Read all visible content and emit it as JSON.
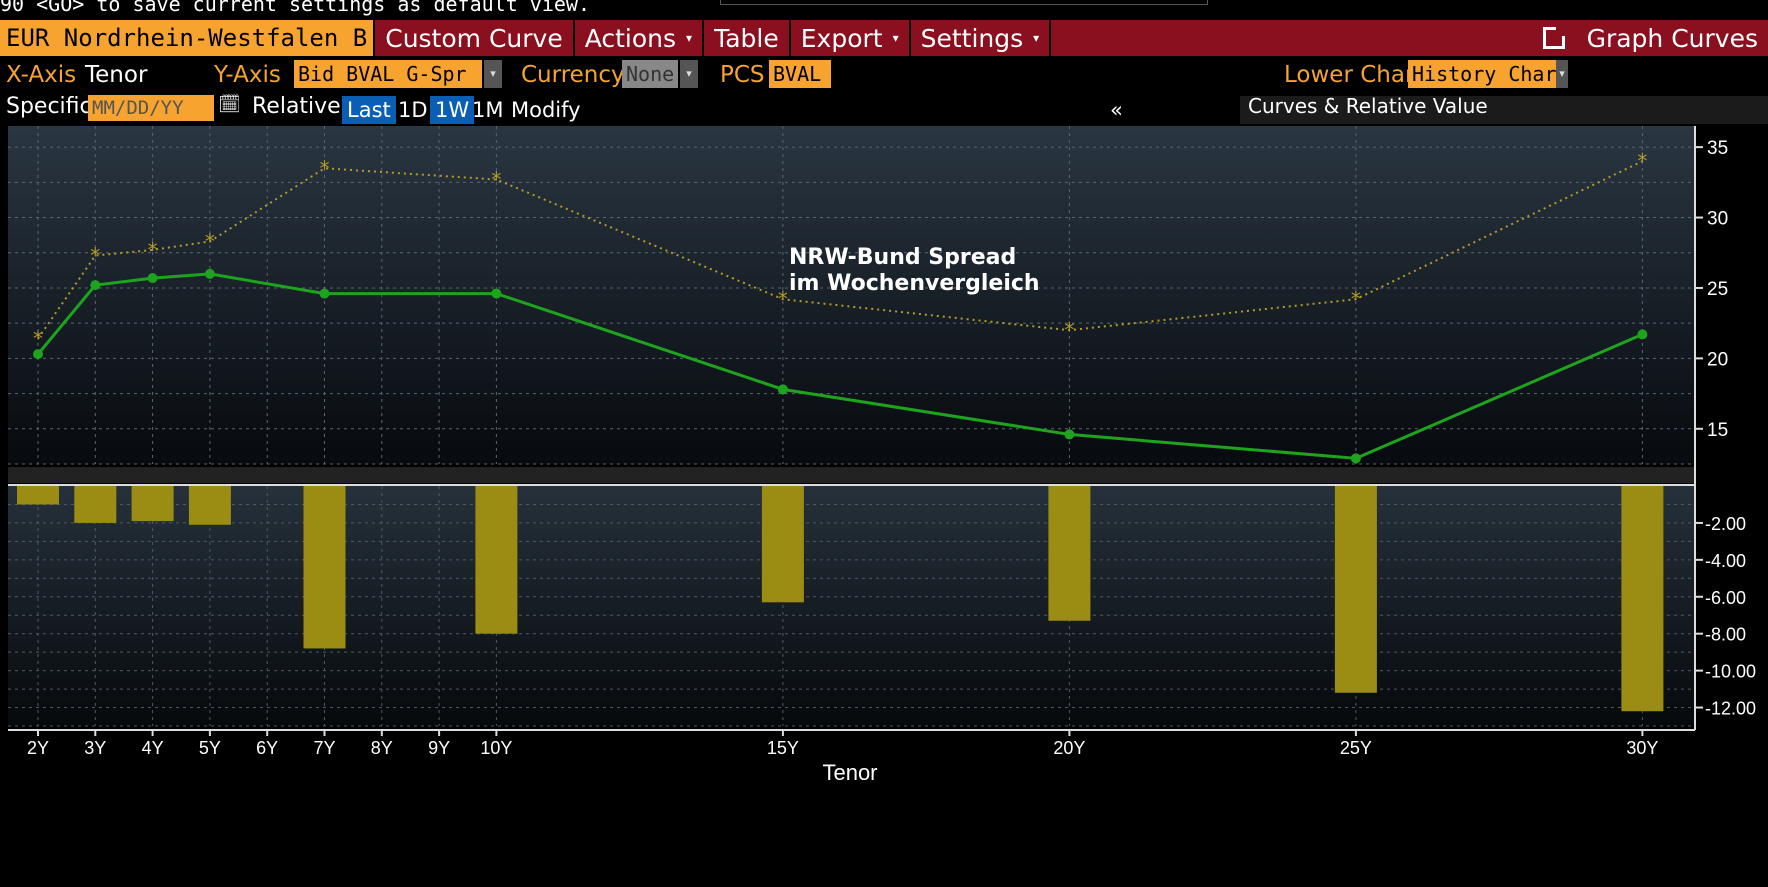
{
  "notice": "90 <GO> to save current settings as default view.",
  "toolbar": {
    "instrument": "EUR Nordrhein-Westfalen B",
    "custom_curve": "Custom Curve",
    "actions": "Actions",
    "table": "Table",
    "export": "Export",
    "settings": "Settings",
    "graph_curves": "Graph Curves",
    "caret": "▾"
  },
  "options": {
    "x_axis_label": "X-Axis",
    "x_axis_value": "Tenor",
    "y_axis_label": "Y-Axis",
    "y_axis_value": "Bid BVAL G-Spr",
    "currency_label": "Currency",
    "currency_value": "None",
    "pcs_label": "PCS",
    "pcs_value": "BVAL",
    "lower_chart_label": "Lower Chart",
    "lower_chart_value": "History Chart"
  },
  "date_row": {
    "specific_label": "Specific",
    "date_placeholder": "MM/DD/YY",
    "calendar_icon": "calendar-icon",
    "relative_label": "Relative",
    "buttons": [
      "Last",
      "1D",
      "1W",
      "1M",
      "Modify"
    ],
    "active_buttons": [
      "Last",
      "1W"
    ],
    "collapse_symbol": "«",
    "panel_title": "Curves & Relative Value"
  },
  "chart_data": [
    {
      "type": "line",
      "x": [
        2,
        3,
        4,
        5,
        7,
        10,
        15,
        20,
        25,
        30
      ],
      "series": [
        {
          "values": [
            20.3,
            25.2,
            25.7,
            26.0,
            24.6,
            24.6,
            17.8,
            14.6,
            12.9,
            21.7
          ],
          "color": "#1ea31e",
          "style": "solid",
          "marker": "dot"
        },
        {
          "values": [
            21.4,
            27.3,
            27.7,
            28.3,
            33.5,
            32.7,
            24.2,
            22.0,
            24.2,
            34.0
          ],
          "color": "#b39b2a",
          "style": "dotted",
          "marker": "star"
        }
      ],
      "annotation": "NRW-Bund Spread\nim Wochenvergleich",
      "ylim": [
        12.5,
        36.5
      ],
      "yticks": [
        15,
        20,
        25,
        30,
        35
      ],
      "grid": true
    },
    {
      "type": "bar",
      "x": [
        2,
        3,
        4,
        5,
        7,
        10,
        15,
        20,
        25,
        30
      ],
      "values": [
        -1.0,
        -2.0,
        -1.9,
        -2.1,
        -8.8,
        -8.0,
        -6.3,
        -7.3,
        -11.2,
        -12.2
      ],
      "color": "#9b8c14",
      "ylim": [
        -13.0,
        0.0
      ],
      "yticks": [
        -2.0,
        -4.0,
        -6.0,
        -8.0,
        -10.0,
        -12.0
      ],
      "ytick_labels": [
        "-2.00",
        "-4.00",
        "-6.00",
        "-8.00",
        "-10.00",
        "-12.00"
      ],
      "grid": true
    }
  ],
  "x_axis": {
    "tick_values": [
      2,
      3,
      4,
      5,
      6,
      7,
      8,
      9,
      10,
      15,
      20,
      25,
      30
    ],
    "tick_labels": [
      "2Y",
      "3Y",
      "4Y",
      "5Y",
      "6Y",
      "7Y",
      "8Y",
      "9Y",
      "10Y",
      "15Y",
      "20Y",
      "25Y",
      "30Y"
    ],
    "title": "Tenor"
  }
}
